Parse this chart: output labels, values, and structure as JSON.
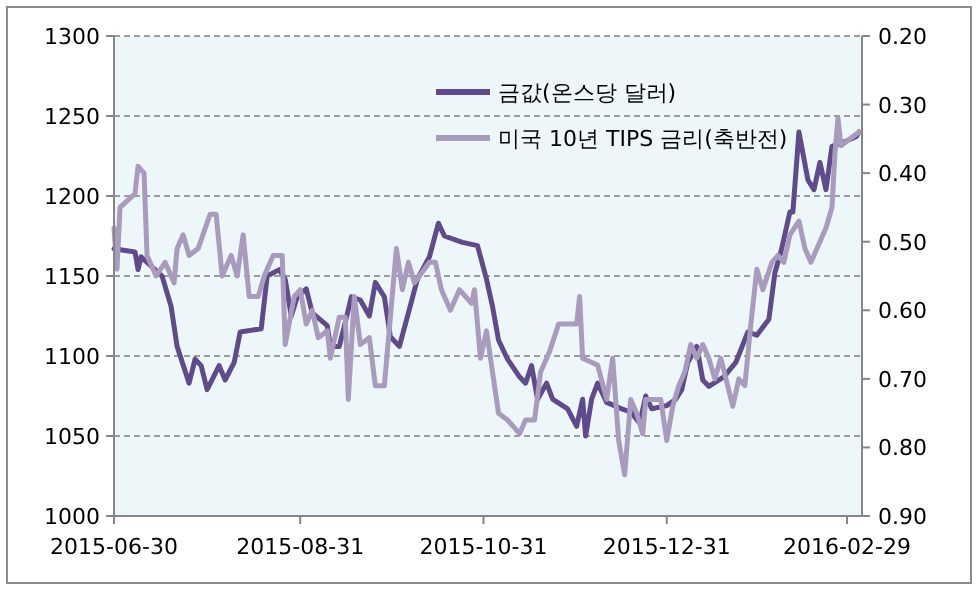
{
  "chart_data": {
    "type": "line",
    "xlim": [
      "2015-06-30",
      "2016-03-05"
    ],
    "xticks": [
      "2015-06-30",
      "2015-08-31",
      "2015-10-31",
      "2015-12-31",
      "2016-02-29"
    ],
    "ylim": [
      1000,
      1300
    ],
    "yticks": [
      1000,
      1050,
      1100,
      1150,
      1200,
      1250,
      1300
    ],
    "y2lim": [
      0.9,
      0.2
    ],
    "y2ticks": [
      {
        "value": 0.9,
        "label": "0.90"
      },
      {
        "value": 0.8,
        "label": "0.80"
      },
      {
        "value": 0.7,
        "label": "0.70"
      },
      {
        "value": 0.6,
        "label": "0.60"
      },
      {
        "value": 0.5,
        "label": "0.50"
      },
      {
        "value": 0.4,
        "label": "0.40"
      },
      {
        "value": 0.3,
        "label": "0.30"
      },
      {
        "value": 0.2,
        "label": "0.20"
      }
    ],
    "grid": "y",
    "legend": "top right",
    "marker": "none",
    "line_style": "solid",
    "series": [
      {
        "name": "금값(온스당 달러)",
        "color": "#5f4b8b",
        "x": [
          "2015-06-30",
          "2015-07-07",
          "2015-07-08",
          "2015-07-09",
          "2015-07-16",
          "2015-07-19",
          "2015-07-21",
          "2015-07-25",
          "2015-07-27",
          "2015-07-29",
          "2015-07-31",
          "2015-08-04",
          "2015-08-06",
          "2015-08-09",
          "2015-08-11",
          "2015-08-18",
          "2015-08-20",
          "2015-08-24",
          "2015-08-26",
          "2015-08-28",
          "2015-08-30",
          "2015-09-02",
          "2015-09-04",
          "2015-09-09",
          "2015-09-10",
          "2015-09-13",
          "2015-09-15",
          "2015-09-17",
          "2015-09-20",
          "2015-09-23",
          "2015-09-25",
          "2015-09-28",
          "2015-09-30",
          "2015-10-03",
          "2015-10-06",
          "2015-10-09",
          "2015-10-13",
          "2015-10-16",
          "2015-10-18",
          "2015-10-24",
          "2015-10-29",
          "2015-11-01",
          "2015-11-03",
          "2015-11-05",
          "2015-11-08",
          "2015-11-12",
          "2015-11-14",
          "2015-11-16",
          "2015-11-18",
          "2015-11-21",
          "2015-11-23",
          "2015-11-28",
          "2015-12-01",
          "2015-12-03",
          "2015-12-04",
          "2015-12-06",
          "2015-12-08",
          "2015-12-11",
          "2015-12-16",
          "2015-12-19",
          "2015-12-22",
          "2015-12-24",
          "2015-12-26",
          "2015-12-31",
          "2016-01-03",
          "2016-01-05",
          "2016-01-07",
          "2016-01-10",
          "2016-01-12",
          "2016-01-14",
          "2016-01-19",
          "2016-01-23",
          "2016-01-27",
          "2016-01-30",
          "2016-02-03",
          "2016-02-05",
          "2016-02-07",
          "2016-02-10",
          "2016-02-11",
          "2016-02-13",
          "2016-02-16",
          "2016-02-18",
          "2016-02-20",
          "2016-02-22",
          "2016-02-24",
          "2016-02-27",
          "2016-03-03",
          "2016-03-04"
        ],
        "values": [
          1167,
          1165,
          1154,
          1162,
          1150,
          1131,
          1106,
          1083,
          1098,
          1094,
          1079,
          1094,
          1085,
          1096,
          1115,
          1117,
          1150,
          1154,
          1148,
          1125,
          1137,
          1142,
          1127,
          1119,
          1106,
          1106,
          1121,
          1137,
          1135,
          1125,
          1146,
          1137,
          1112,
          1106,
          1127,
          1148,
          1162,
          1183,
          1175,
          1171,
          1169,
          1148,
          1131,
          1110,
          1098,
          1087,
          1083,
          1094,
          1073,
          1083,
          1073,
          1067,
          1056,
          1073,
          1050,
          1073,
          1083,
          1071,
          1067,
          1065,
          1058,
          1075,
          1067,
          1069,
          1073,
          1079,
          1096,
          1106,
          1085,
          1081,
          1087,
          1096,
          1115,
          1113,
          1123,
          1152,
          1165,
          1190,
          1190,
          1240,
          1210,
          1204,
          1221,
          1204,
          1231,
          1233,
          1237,
          1240
        ]
      },
      {
        "name": "미국 10년 TIPS 금리(축반전)",
        "color": "#a99bbd",
        "axis": "y2",
        "x": [
          "2015-06-30",
          "2015-07-01",
          "2015-07-02",
          "2015-07-07",
          "2015-07-08",
          "2015-07-10",
          "2015-07-11",
          "2015-07-14",
          "2015-07-17",
          "2015-07-20",
          "2015-07-21",
          "2015-07-23",
          "2015-07-25",
          "2015-07-28",
          "2015-08-01",
          "2015-08-03",
          "2015-08-05",
          "2015-08-08",
          "2015-08-10",
          "2015-08-12",
          "2015-08-14",
          "2015-08-17",
          "2015-08-19",
          "2015-08-22",
          "2015-08-25",
          "2015-08-26",
          "2015-08-29",
          "2015-08-31",
          "2015-09-02",
          "2015-09-04",
          "2015-09-06",
          "2015-09-09",
          "2015-09-10",
          "2015-09-13",
          "2015-09-15",
          "2015-09-16",
          "2015-09-18",
          "2015-09-20",
          "2015-09-23",
          "2015-09-25",
          "2015-09-28",
          "2015-10-02",
          "2015-10-04",
          "2015-10-06",
          "2015-10-08",
          "2015-10-13",
          "2015-10-15",
          "2015-10-17",
          "2015-10-20",
          "2015-10-23",
          "2015-10-27",
          "2015-10-28",
          "2015-10-30",
          "2015-11-01",
          "2015-11-03",
          "2015-11-05",
          "2015-11-08",
          "2015-11-12",
          "2015-11-14",
          "2015-11-17",
          "2015-11-19",
          "2015-11-22",
          "2015-11-25",
          "2015-12-01",
          "2015-12-02",
          "2015-12-03",
          "2015-12-08",
          "2015-12-11",
          "2015-12-13",
          "2015-12-15",
          "2015-12-17",
          "2015-12-19",
          "2015-12-21",
          "2015-12-23",
          "2015-12-24",
          "2015-12-29",
          "2015-12-31",
          "2016-01-02",
          "2016-01-04",
          "2016-01-06",
          "2016-01-08",
          "2016-01-10",
          "2016-01-12",
          "2016-01-14",
          "2016-01-16",
          "2016-01-18",
          "2016-01-22",
          "2016-01-24",
          "2016-01-26",
          "2016-01-28",
          "2016-01-30",
          "2016-02-01",
          "2016-02-04",
          "2016-02-06",
          "2016-02-08",
          "2016-02-10",
          "2016-02-13",
          "2016-02-15",
          "2016-02-17",
          "2016-02-22",
          "2016-02-24",
          "2016-02-25",
          "2016-02-26",
          "2016-02-27",
          "2016-03-01",
          "2016-03-04"
        ],
        "values": [
          0.48,
          0.54,
          0.45,
          0.43,
          0.39,
          0.4,
          0.52,
          0.55,
          0.53,
          0.56,
          0.51,
          0.49,
          0.52,
          0.51,
          0.46,
          0.46,
          0.55,
          0.52,
          0.55,
          0.49,
          0.58,
          0.58,
          0.55,
          0.52,
          0.52,
          0.65,
          0.58,
          0.57,
          0.62,
          0.6,
          0.64,
          0.63,
          0.67,
          0.61,
          0.61,
          0.73,
          0.58,
          0.65,
          0.64,
          0.71,
          0.71,
          0.51,
          0.57,
          0.53,
          0.56,
          0.53,
          0.53,
          0.57,
          0.6,
          0.57,
          0.59,
          0.57,
          0.67,
          0.63,
          0.69,
          0.75,
          0.76,
          0.78,
          0.76,
          0.76,
          0.69,
          0.66,
          0.62,
          0.62,
          0.58,
          0.67,
          0.68,
          0.73,
          0.67,
          0.79,
          0.84,
          0.73,
          0.75,
          0.78,
          0.73,
          0.73,
          0.79,
          0.74,
          0.71,
          0.69,
          0.65,
          0.67,
          0.65,
          0.67,
          0.7,
          0.67,
          0.74,
          0.7,
          0.71,
          0.62,
          0.54,
          0.57,
          0.53,
          0.52,
          0.53,
          0.49,
          0.47,
          0.51,
          0.53,
          0.48,
          0.45,
          0.37,
          0.32,
          0.36,
          0.35,
          0.34
        ]
      }
    ]
  }
}
